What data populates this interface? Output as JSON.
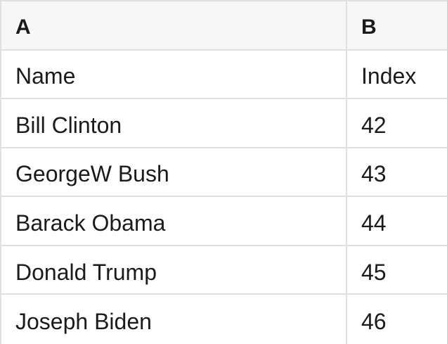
{
  "table": {
    "column_headers": {
      "a": "A",
      "b": "B"
    },
    "rows": [
      {
        "a": "Name",
        "b": "Index"
      },
      {
        "a": "Bill Clinton",
        "b": "42"
      },
      {
        "a": "GeorgeW Bush",
        "b": "43"
      },
      {
        "a": "Barack Obama",
        "b": "44"
      },
      {
        "a": "Donald Trump",
        "b": "45"
      },
      {
        "a": "Joseph Biden",
        "b": "46"
      }
    ]
  },
  "colors": {
    "header_background": "#f7f7f7",
    "gridline": "#e0e0e0",
    "text": "#1b1b1b",
    "cell_background": "#ffffff"
  }
}
